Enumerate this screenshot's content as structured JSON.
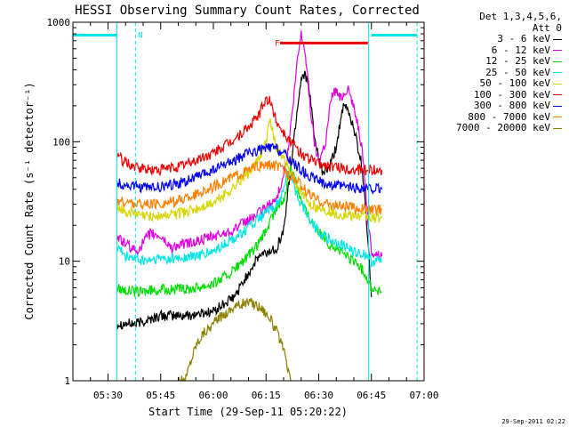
{
  "chart_data": {
    "type": "line",
    "title": "HESSI Observing Summary Count Rates, Corrected",
    "xlabel": "Start Time (29-Sep-11 05:20:22)",
    "ylabel": "Corrected Count Rate (s⁻¹ detector⁻¹)",
    "xlim": [
      20,
      120
    ],
    "ylim": [
      1,
      1000
    ],
    "yscale": "log",
    "x_ticks": [
      {
        "min": 30,
        "label": "05:30"
      },
      {
        "min": 45,
        "label": "05:45"
      },
      {
        "min": 60,
        "label": "06:00"
      },
      {
        "min": 75,
        "label": "06:15"
      },
      {
        "min": 90,
        "label": "06:30"
      },
      {
        "min": 105,
        "label": "06:45"
      },
      {
        "min": 120,
        "label": "07:00"
      }
    ],
    "y_ticks": [
      {
        "value": 1,
        "label": "1"
      },
      {
        "value": 10,
        "label": "10"
      },
      {
        "value": 100,
        "label": "100"
      },
      {
        "value": 1000,
        "label": "1000"
      }
    ],
    "legend_header": [
      "Det 1,3,4,5,6,",
      "Att 0"
    ],
    "series": [
      {
        "name": "3 - 6 keV",
        "color": "#000000",
        "points": [
          [
            32.5,
            3
          ],
          [
            38,
            3
          ],
          [
            45,
            3.5
          ],
          [
            52,
            3.5
          ],
          [
            60,
            3.8
          ],
          [
            66,
            5
          ],
          [
            70,
            8
          ],
          [
            73,
            11
          ],
          [
            76,
            12
          ],
          [
            78,
            13
          ],
          [
            80,
            18
          ],
          [
            82,
            60
          ],
          [
            84,
            200
          ],
          [
            85,
            340
          ],
          [
            86,
            380
          ],
          [
            87,
            300
          ],
          [
            88,
            180
          ],
          [
            89,
            100
          ],
          [
            90,
            70
          ],
          [
            91,
            55
          ],
          [
            93,
            60
          ],
          [
            95,
            90
          ],
          [
            96,
            140
          ],
          [
            97,
            190
          ],
          [
            98,
            195
          ],
          [
            99,
            160
          ],
          [
            100,
            130
          ],
          [
            101,
            95
          ],
          [
            102,
            70
          ],
          [
            103,
            40
          ],
          [
            104,
            15
          ],
          [
            105,
            5
          ]
        ]
      },
      {
        "name": "6 - 12 keV",
        "color": "#dd00dd",
        "points": [
          [
            32.5,
            16
          ],
          [
            35,
            14
          ],
          [
            38,
            12
          ],
          [
            42,
            17
          ],
          [
            45,
            16
          ],
          [
            48,
            13
          ],
          [
            52,
            14
          ],
          [
            55,
            14.5
          ],
          [
            60,
            16
          ],
          [
            65,
            18
          ],
          [
            70,
            22
          ],
          [
            75,
            28
          ],
          [
            78,
            33
          ],
          [
            81,
            70
          ],
          [
            83,
            250
          ],
          [
            84,
            500
          ],
          [
            85,
            800
          ],
          [
            86,
            600
          ],
          [
            87,
            300
          ],
          [
            88,
            150
          ],
          [
            89,
            90
          ],
          [
            90,
            70
          ],
          [
            92,
            100
          ],
          [
            93,
            180
          ],
          [
            94,
            260
          ],
          [
            95,
            270
          ],
          [
            96,
            230
          ],
          [
            97,
            250
          ],
          [
            98,
            280
          ],
          [
            99,
            250
          ],
          [
            100,
            190
          ],
          [
            101,
            150
          ],
          [
            102,
            100
          ],
          [
            103,
            55
          ],
          [
            104,
            22
          ],
          [
            105,
            12
          ],
          [
            108,
            11
          ]
        ]
      },
      {
        "name": "12 - 25 keV",
        "color": "#00dd00",
        "points": [
          [
            32.5,
            6
          ],
          [
            38,
            5.5
          ],
          [
            45,
            5.8
          ],
          [
            52,
            5.8
          ],
          [
            60,
            6.5
          ],
          [
            65,
            8
          ],
          [
            70,
            11
          ],
          [
            73,
            14
          ],
          [
            75,
            18
          ],
          [
            78,
            28
          ],
          [
            80,
            32
          ],
          [
            81,
            45
          ],
          [
            82,
            60
          ],
          [
            83,
            55
          ],
          [
            84,
            42
          ],
          [
            85,
            32
          ],
          [
            87,
            24
          ],
          [
            89,
            20
          ],
          [
            91,
            16
          ],
          [
            93,
            14
          ],
          [
            95,
            13
          ],
          [
            98,
            11
          ],
          [
            101,
            9.5
          ],
          [
            103,
            8
          ],
          [
            104,
            7
          ],
          [
            105,
            6
          ],
          [
            108,
            5.5
          ]
        ]
      },
      {
        "name": "25 - 50 keV",
        "color": "#00e6e6",
        "points": [
          [
            32.5,
            13
          ],
          [
            35,
            11
          ],
          [
            40,
            10
          ],
          [
            45,
            10.5
          ],
          [
            50,
            10.5
          ],
          [
            55,
            11
          ],
          [
            60,
            12
          ],
          [
            65,
            15
          ],
          [
            70,
            19
          ],
          [
            74,
            24
          ],
          [
            77,
            28
          ],
          [
            79,
            32
          ],
          [
            80,
            40
          ],
          [
            81,
            60
          ],
          [
            82,
            50
          ],
          [
            84,
            35
          ],
          [
            86,
            27
          ],
          [
            88,
            21
          ],
          [
            90,
            18
          ],
          [
            93,
            15
          ],
          [
            96,
            14
          ],
          [
            99,
            12.5
          ],
          [
            102,
            11.5
          ],
          [
            104,
            11
          ],
          [
            105,
            10
          ],
          [
            108,
            10
          ]
        ]
      },
      {
        "name": "50 - 100 keV",
        "color": "#d6d600",
        "points": [
          [
            32.5,
            30
          ],
          [
            35,
            26
          ],
          [
            40,
            24
          ],
          [
            45,
            24
          ],
          [
            50,
            25
          ],
          [
            55,
            27
          ],
          [
            60,
            31
          ],
          [
            65,
            40
          ],
          [
            70,
            55
          ],
          [
            73,
            70
          ],
          [
            75,
            100
          ],
          [
            76,
            150
          ],
          [
            77,
            120
          ],
          [
            78,
            90
          ],
          [
            80,
            70
          ],
          [
            82,
            55
          ],
          [
            84,
            42
          ],
          [
            86,
            34
          ],
          [
            88,
            30
          ],
          [
            90,
            28
          ],
          [
            93,
            26
          ],
          [
            96,
            24.5
          ],
          [
            100,
            24
          ],
          [
            105,
            23
          ],
          [
            108,
            23
          ]
        ]
      },
      {
        "name": "100 - 300 keV",
        "color": "#ee0000",
        "points": [
          [
            32.5,
            80
          ],
          [
            34,
            70
          ],
          [
            38,
            60
          ],
          [
            44,
            58
          ],
          [
            50,
            62
          ],
          [
            55,
            70
          ],
          [
            60,
            80
          ],
          [
            65,
            100
          ],
          [
            70,
            130
          ],
          [
            73,
            170
          ],
          [
            75,
            230
          ],
          [
            76,
            220
          ],
          [
            78,
            150
          ],
          [
            80,
            120
          ],
          [
            82,
            100
          ],
          [
            84,
            85
          ],
          [
            86,
            75
          ],
          [
            88,
            70
          ],
          [
            90,
            66
          ],
          [
            93,
            62
          ],
          [
            96,
            60
          ],
          [
            100,
            58
          ],
          [
            105,
            58
          ],
          [
            108,
            58
          ]
        ]
      },
      {
        "name": "300 - 800 keV",
        "color": "#0000ee",
        "points": [
          [
            32.5,
            45
          ],
          [
            35,
            43
          ],
          [
            40,
            41
          ],
          [
            45,
            42
          ],
          [
            50,
            45
          ],
          [
            55,
            50
          ],
          [
            60,
            58
          ],
          [
            65,
            68
          ],
          [
            70,
            80
          ],
          [
            73,
            86
          ],
          [
            76,
            90
          ],
          [
            78,
            88
          ],
          [
            80,
            80
          ],
          [
            82,
            70
          ],
          [
            84,
            62
          ],
          [
            86,
            55
          ],
          [
            88,
            50
          ],
          [
            90,
            47
          ],
          [
            93,
            44
          ],
          [
            96,
            42
          ],
          [
            100,
            41
          ],
          [
            105,
            40
          ],
          [
            108,
            40
          ]
        ]
      },
      {
        "name": "800 - 7000 keV",
        "color": "#ff7f00",
        "points": [
          [
            32.5,
            32
          ],
          [
            35,
            31
          ],
          [
            40,
            30
          ],
          [
            45,
            30
          ],
          [
            50,
            32
          ],
          [
            55,
            36
          ],
          [
            60,
            42
          ],
          [
            65,
            50
          ],
          [
            70,
            58
          ],
          [
            73,
            62
          ],
          [
            76,
            64
          ],
          [
            78,
            63
          ],
          [
            80,
            58
          ],
          [
            82,
            52
          ],
          [
            84,
            46
          ],
          [
            86,
            40
          ],
          [
            88,
            35
          ],
          [
            90,
            32
          ],
          [
            93,
            30
          ],
          [
            96,
            29
          ],
          [
            100,
            28
          ],
          [
            105,
            27
          ],
          [
            108,
            27
          ]
        ]
      },
      {
        "name": "7000 - 20000 keV",
        "color": "#8b8000",
        "points": [
          [
            50,
            1
          ],
          [
            52,
            1
          ],
          [
            53,
            1.3
          ],
          [
            55,
            2
          ],
          [
            57,
            2.5
          ],
          [
            60,
            3
          ],
          [
            63,
            3.6
          ],
          [
            66,
            4.2
          ],
          [
            69,
            4.5
          ],
          [
            72,
            4.4
          ],
          [
            74,
            4
          ],
          [
            76,
            3.4
          ],
          [
            78,
            2.6
          ],
          [
            80,
            1.8
          ],
          [
            81,
            1.3
          ],
          [
            82,
            1
          ]
        ]
      }
    ],
    "annotations": [
      {
        "type": "segment",
        "color": "#00e6e6",
        "x": [
          20,
          32.5
        ],
        "y": 780
      },
      {
        "type": "segment",
        "color": "#00e6e6",
        "x": [
          105,
          118
        ],
        "y": 780
      },
      {
        "type": "vline",
        "color": "#00e6e6",
        "x": 32.5,
        "style": "solid"
      },
      {
        "type": "vline",
        "color": "#00e6e6",
        "x": 37.8,
        "style": "dashed"
      },
      {
        "type": "vline",
        "color": "#00e6e6",
        "x": 104.2,
        "style": "solid"
      },
      {
        "type": "vline",
        "color": "#00e6e6",
        "x": 118,
        "style": "dashed"
      },
      {
        "type": "label",
        "text": "N",
        "color": "#00e6e6",
        "x": 38.5,
        "y": 780
      },
      {
        "type": "segment",
        "color": "#ee0000",
        "x": [
          79,
          104
        ],
        "y": 670
      },
      {
        "type": "label",
        "text": "F",
        "color": "#ee0000",
        "x": 77.5,
        "y": 670
      }
    ],
    "grid": false,
    "legend_position": "outside-right"
  },
  "timestamp": "29-Sep-2011 02:22"
}
